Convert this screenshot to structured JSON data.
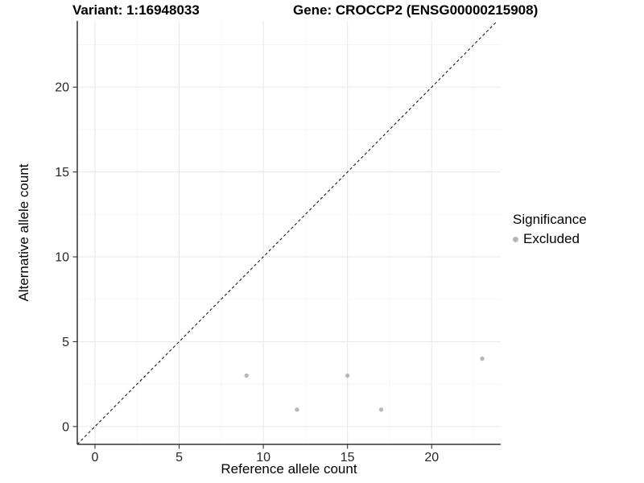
{
  "header": {
    "title_left": "Variant: 1:16948033",
    "title_right": "Gene: CROCCP2 (ENSG00000215908)"
  },
  "chart_data": {
    "type": "scatter",
    "xlabel": "Reference allele count",
    "ylabel": "Alternative allele count",
    "xlim": [
      -1.05,
      24.1
    ],
    "ylim": [
      -1.05,
      23.9
    ],
    "x_ticks": [
      0,
      5,
      10,
      15,
      20
    ],
    "y_ticks": [
      0,
      5,
      10,
      15,
      20
    ],
    "x_minor_ticks": [
      2.5,
      7.5,
      12.5,
      17.5,
      22.5
    ],
    "y_minor_ticks": [
      2.5,
      7.5,
      12.5,
      17.5,
      22.5
    ],
    "grid": "major-and-minor",
    "series": [
      {
        "name": "Excluded",
        "points": [
          [
            9,
            3
          ],
          [
            12,
            1
          ],
          [
            15,
            3
          ],
          [
            17,
            1
          ],
          [
            23,
            4
          ]
        ],
        "color": "#b8b8b8",
        "marker": "circle",
        "marker_radius": 2.7
      }
    ],
    "reference_line": {
      "slope": 1,
      "intercept": 0,
      "style": "dashed",
      "color": "#1a1a1a"
    },
    "legend": {
      "title": "Significance",
      "position": "right",
      "items": [
        {
          "label": "Excluded",
          "color": "#b8b8b8"
        }
      ]
    },
    "colors": {
      "background": "#ffffff",
      "grid_major": "#e7e7e7",
      "grid_minor": "#f3f3f3",
      "axis_line": "#333333",
      "tick_mark": "#333333",
      "tick_label": "#262626"
    }
  }
}
